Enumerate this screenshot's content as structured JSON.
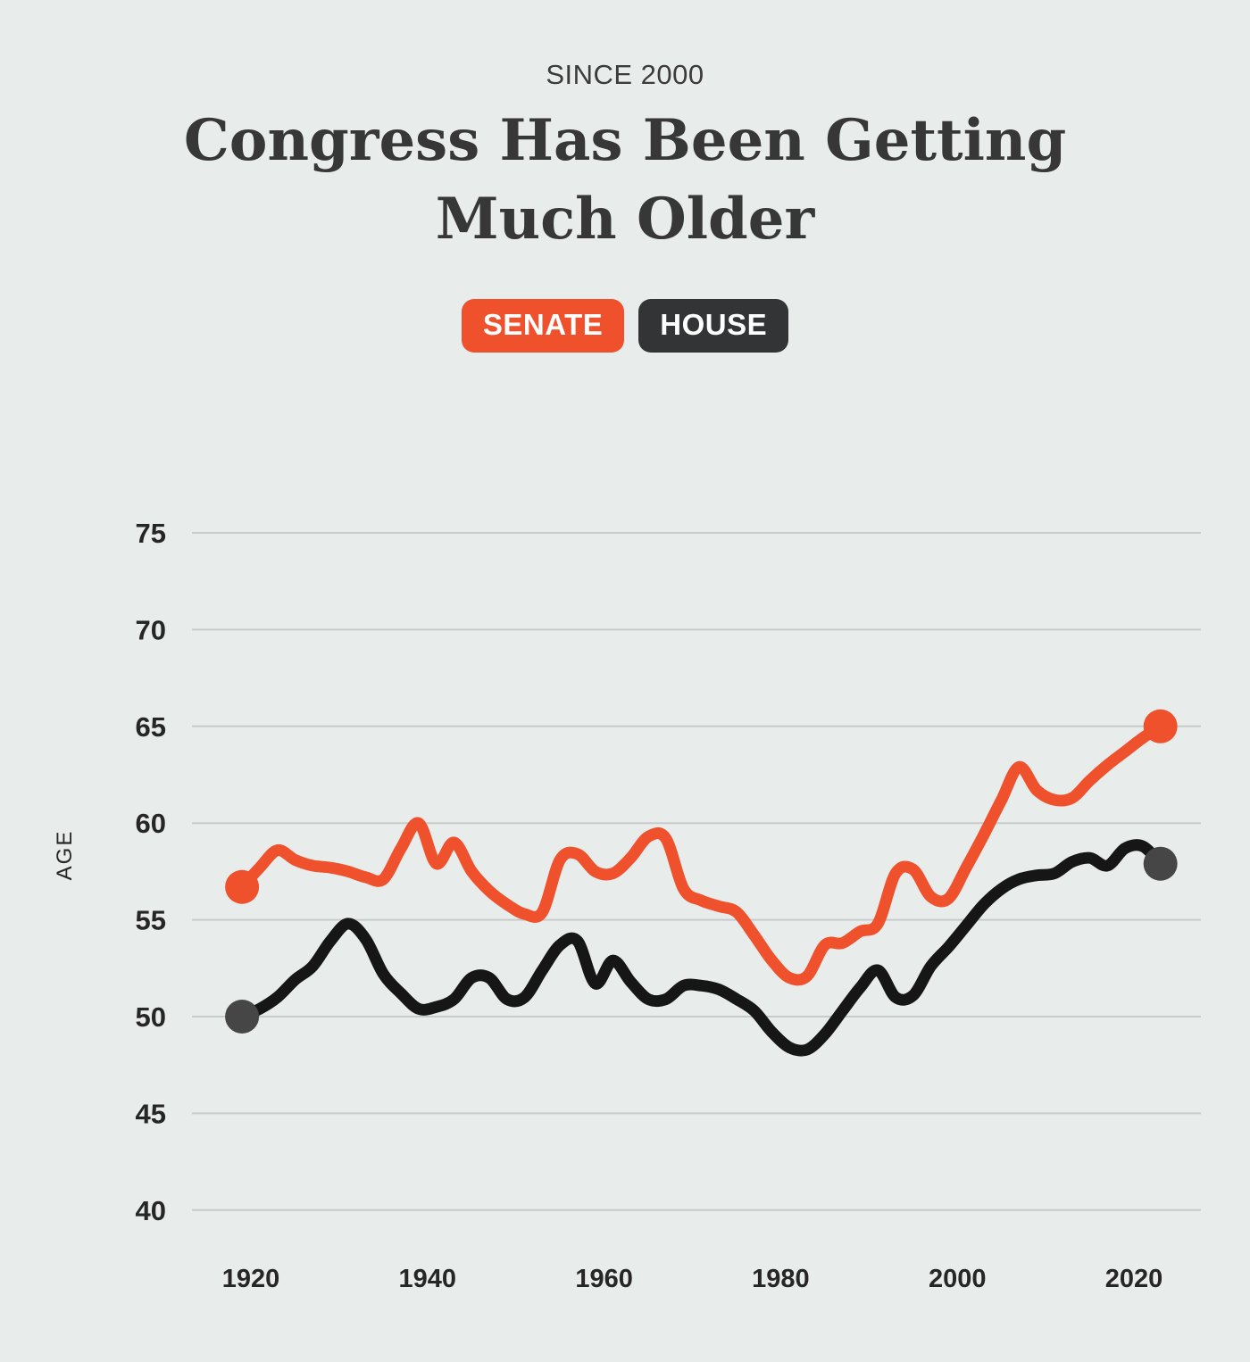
{
  "page": {
    "background_color": "#e8eceb"
  },
  "header": {
    "kicker": "SINCE 2000",
    "title_line1": "Congress Has Been Getting",
    "title_line2": "Much Older"
  },
  "legend": [
    {
      "label": "SENATE",
      "color": "#f0512d",
      "text_color": "#ffffff"
    },
    {
      "label": "HOUSE",
      "color": "#333435",
      "text_color": "#ffffff"
    }
  ],
  "chart_data": {
    "type": "line",
    "title": "Congress Has Been Getting Much Older",
    "subtitle": "SINCE 2000",
    "xlabel": "",
    "ylabel": "AGE",
    "grid": true,
    "legend_position": "top",
    "xlim": [
      1914,
      2028
    ],
    "ylim": [
      37.5,
      77.5
    ],
    "x_ticks": [
      1920,
      1940,
      1960,
      1980,
      2000,
      2020
    ],
    "y_ticks": [
      40,
      45,
      50,
      55,
      60,
      65,
      70,
      75
    ],
    "x": [
      1919,
      1921,
      1923,
      1925,
      1927,
      1929,
      1931,
      1933,
      1935,
      1937,
      1939,
      1941,
      1943,
      1945,
      1947,
      1949,
      1951,
      1953,
      1955,
      1957,
      1959,
      1961,
      1963,
      1965,
      1967,
      1969,
      1971,
      1973,
      1975,
      1977,
      1979,
      1981,
      1983,
      1985,
      1987,
      1989,
      1991,
      1993,
      1995,
      1997,
      1999,
      2001,
      2003,
      2005,
      2007,
      2009,
      2011,
      2013,
      2015,
      2017,
      2019,
      2021,
      2023
    ],
    "series": [
      {
        "name": "SENATE",
        "color": "#f0512d",
        "dot_color": "#f0512d",
        "endpoint_dots": true,
        "values": [
          56.7,
          57.7,
          58.6,
          58.1,
          57.8,
          57.7,
          57.5,
          57.2,
          57.1,
          58.7,
          60.0,
          57.9,
          59.0,
          57.5,
          56.5,
          55.8,
          55.3,
          55.4,
          58.1,
          58.4,
          57.5,
          57.4,
          58.2,
          59.3,
          59.2,
          56.6,
          56.0,
          55.7,
          55.4,
          54.2,
          52.9,
          52.0,
          52.1,
          53.7,
          53.8,
          54.4,
          54.8,
          57.4,
          57.6,
          56.2,
          56.1,
          57.7,
          59.4,
          61.2,
          62.9,
          61.7,
          61.2,
          61.3,
          62.2,
          63.0,
          63.7,
          64.4,
          65.0
        ]
      },
      {
        "name": "HOUSE",
        "color": "#161616",
        "dot_color": "#464646",
        "endpoint_dots": true,
        "values": [
          50.0,
          50.4,
          51.0,
          51.9,
          52.6,
          53.9,
          54.8,
          54.0,
          52.2,
          51.2,
          50.4,
          50.5,
          50.9,
          52.0,
          52.0,
          50.9,
          51.0,
          52.4,
          53.7,
          53.9,
          51.7,
          52.9,
          51.8,
          50.9,
          50.9,
          51.6,
          51.6,
          51.4,
          50.9,
          50.3,
          49.2,
          48.4,
          48.3,
          49.1,
          50.3,
          51.5,
          52.4,
          51.0,
          51.1,
          52.6,
          53.6,
          54.7,
          55.8,
          56.6,
          57.1,
          57.3,
          57.4,
          58.0,
          58.2,
          57.8,
          58.7,
          58.8,
          57.9
        ]
      }
    ]
  }
}
